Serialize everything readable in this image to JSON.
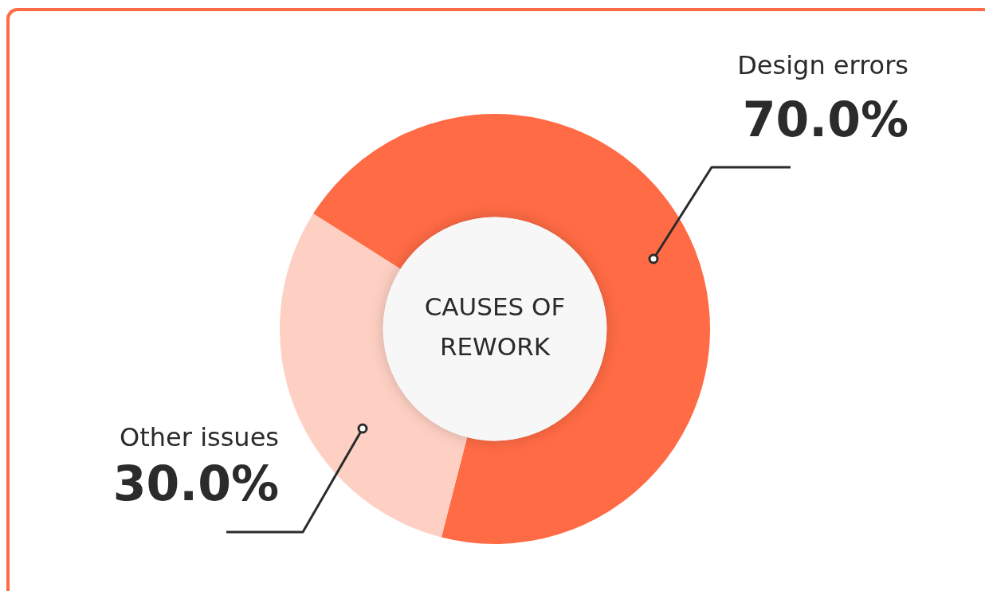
{
  "chart_data": {
    "type": "donut",
    "title": "CAUSES OF REWORK",
    "categories": [
      "Design errors",
      "Other issues"
    ],
    "values": [
      70.0,
      30.0
    ],
    "colors": [
      "#ff6b45",
      "#fdd0c3"
    ],
    "value_labels": [
      "70.0%",
      "30.0%"
    ],
    "legend": false
  }
}
